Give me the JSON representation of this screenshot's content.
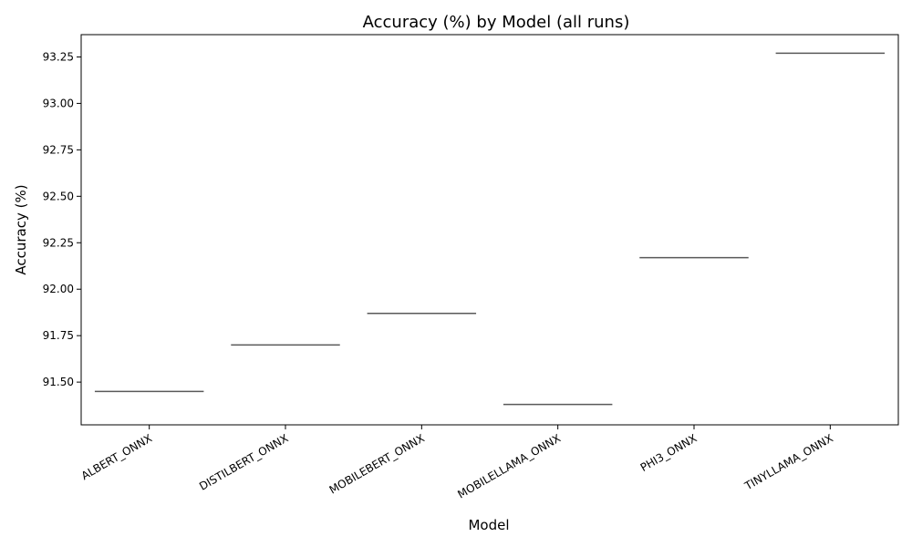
{
  "chart_data": {
    "type": "box",
    "title": "Accuracy (%) by Model (all runs)",
    "xlabel": "Model",
    "ylabel": "Accuracy (%)",
    "categories": [
      "ALBERT_ONNX",
      "DISTILBERT_ONNX",
      "MOBILEBERT_ONNX",
      "MOBILELLAMA_ONNX",
      "PHI3_ONNX",
      "TINYLLAMA_ONNX"
    ],
    "values": [
      91.45,
      91.7,
      91.87,
      91.38,
      92.17,
      93.27
    ],
    "ylim": [
      91.27,
      93.37
    ],
    "yticks": [
      "91.50",
      "91.75",
      "92.00",
      "92.25",
      "92.50",
      "92.75",
      "93.00",
      "93.25"
    ],
    "ytick_values": [
      91.5,
      91.75,
      92.0,
      92.25,
      92.5,
      92.75,
      93.0,
      93.25
    ],
    "grid": false,
    "legend": "none",
    "line_color": "#595959"
  }
}
